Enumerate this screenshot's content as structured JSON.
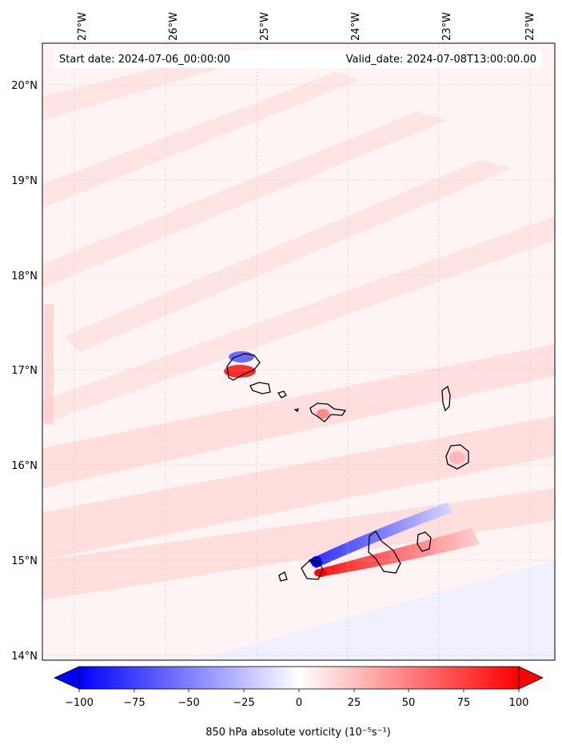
{
  "header": {
    "start_date": "Start date: 2024-07-06_00:00:00",
    "valid_date": "Valid_date: 2024-07-08T13:00:00.00"
  },
  "map": {
    "lon_ticks": [
      "27°W",
      "26°W",
      "25°W",
      "24°W",
      "23°W",
      "22°W"
    ],
    "lat_ticks": [
      "20°N",
      "19°N",
      "18°N",
      "17°N",
      "16°N",
      "15°N",
      "14°N"
    ]
  },
  "colorbar": {
    "ticks": [
      "−100",
      "−75",
      "−50",
      "−25",
      "0",
      "25",
      "50",
      "75",
      "100"
    ],
    "min": -100,
    "max": 100,
    "label": "850 hPa absolute vorticity (10⁻⁵s⁻¹)",
    "low_color": "#0000ff",
    "mid_color": "#ffffff",
    "high_color": "#ff0000"
  }
}
